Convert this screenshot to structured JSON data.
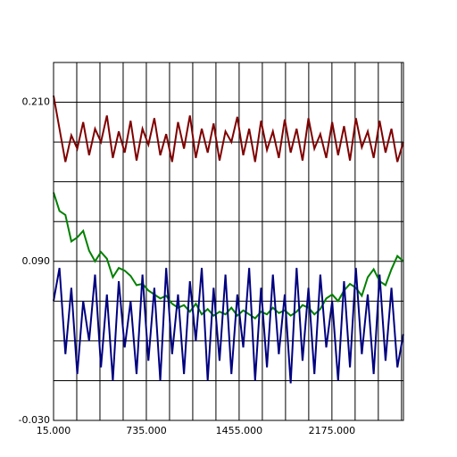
{
  "chart_data": {
    "type": "line",
    "x": [
      15,
      61,
      107,
      153,
      199,
      245,
      291,
      337,
      383,
      429,
      475,
      521,
      567,
      613,
      659,
      705,
      751,
      797,
      843,
      889,
      935,
      981,
      1027,
      1073,
      1119,
      1165,
      1211,
      1257,
      1303,
      1349,
      1395,
      1441,
      1487,
      1533,
      1579,
      1625,
      1671,
      1717,
      1763,
      1809,
      1855,
      1901,
      1947,
      1993,
      2039,
      2085,
      2131,
      2177,
      2223,
      2269,
      2315,
      2361,
      2407,
      2453,
      2499,
      2545,
      2591,
      2637,
      2683,
      2729
    ],
    "series": [
      {
        "color": "#800000",
        "values": [
          0.215,
          0.19,
          0.165,
          0.185,
          0.175,
          0.195,
          0.17,
          0.19,
          0.18,
          0.2,
          0.168,
          0.188,
          0.172,
          0.196,
          0.166,
          0.19,
          0.178,
          0.198,
          0.17,
          0.186,
          0.165,
          0.195,
          0.175,
          0.2,
          0.168,
          0.19,
          0.172,
          0.194,
          0.166,
          0.188,
          0.18,
          0.199,
          0.17,
          0.19,
          0.165,
          0.196,
          0.174,
          0.188,
          0.168,
          0.197,
          0.172,
          0.19,
          0.166,
          0.198,
          0.175,
          0.186,
          0.168,
          0.195,
          0.17,
          0.192,
          0.166,
          0.198,
          0.176,
          0.188,
          0.168,
          0.196,
          0.172,
          0.19,
          0.165,
          0.18
        ]
      },
      {
        "color": "#008000",
        "values": [
          0.142,
          0.128,
          0.125,
          0.105,
          0.108,
          0.113,
          0.098,
          0.09,
          0.097,
          0.092,
          0.078,
          0.085,
          0.083,
          0.079,
          0.072,
          0.073,
          0.068,
          0.065,
          0.062,
          0.064,
          0.058,
          0.055,
          0.057,
          0.052,
          0.058,
          0.05,
          0.054,
          0.049,
          0.052,
          0.05,
          0.055,
          0.049,
          0.053,
          0.05,
          0.047,
          0.052,
          0.05,
          0.055,
          0.051,
          0.053,
          0.049,
          0.052,
          0.057,
          0.055,
          0.05,
          0.054,
          0.062,
          0.065,
          0.06,
          0.068,
          0.073,
          0.07,
          0.064,
          0.078,
          0.084,
          0.075,
          0.072,
          0.084,
          0.094,
          0.09
        ]
      },
      {
        "color": "#000080",
        "values": [
          0.06,
          0.085,
          0.02,
          0.07,
          0.005,
          0.06,
          0.03,
          0.08,
          0.01,
          0.065,
          0.0,
          0.075,
          0.025,
          0.06,
          0.005,
          0.08,
          0.015,
          0.07,
          0.0,
          0.085,
          0.02,
          0.065,
          0.005,
          0.075,
          0.03,
          0.085,
          0.0,
          0.07,
          0.015,
          0.08,
          0.005,
          0.065,
          0.025,
          0.085,
          0.0,
          0.07,
          0.01,
          0.08,
          0.02,
          0.065,
          -0.002,
          0.085,
          0.015,
          0.07,
          0.005,
          0.08,
          0.025,
          0.06,
          0.0,
          0.075,
          0.01,
          0.085,
          0.02,
          0.065,
          0.005,
          0.08,
          0.015,
          0.07,
          0.01,
          0.035
        ]
      }
    ],
    "xlim": [
      15,
      2730
    ],
    "ylim": [
      -0.03,
      0.24
    ],
    "xticks": [
      {
        "value": 15,
        "label": "15.000"
      },
      {
        "value": 735,
        "label": "735.000"
      },
      {
        "value": 1455,
        "label": "1455.000"
      },
      {
        "value": 2175,
        "label": "2175.000"
      }
    ],
    "yticks": [
      {
        "value": -0.03,
        "label": "-0.030"
      },
      {
        "value": 0.09,
        "label": "0.090"
      },
      {
        "value": 0.21,
        "label": "0.210"
      }
    ],
    "xgrid": [
      15,
      195,
      375,
      555,
      735,
      915,
      1095,
      1275,
      1455,
      1635,
      1815,
      1995,
      2175,
      2355,
      2535,
      2715
    ],
    "ygrid": [
      -0.03,
      0,
      0.03,
      0.06,
      0.09,
      0.12,
      0.15,
      0.18,
      0.21,
      0.24
    ]
  }
}
